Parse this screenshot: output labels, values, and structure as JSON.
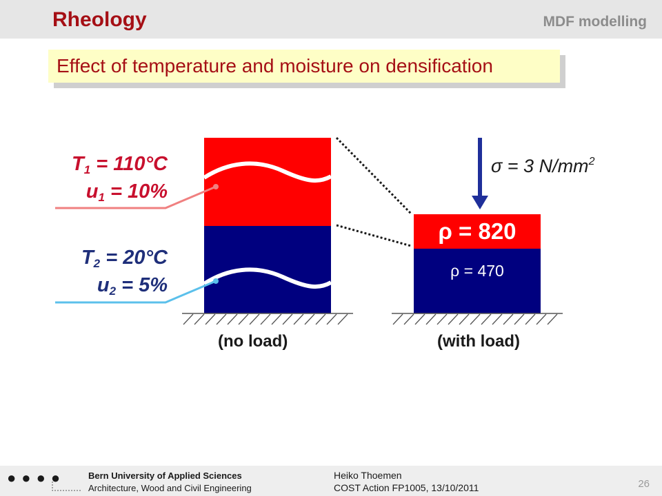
{
  "header": {
    "title": "Rheology",
    "topic": "MDF modelling"
  },
  "subtitle": "Effect of temperature and moisture on densification",
  "labels": {
    "t1_var": "T",
    "t1_sub": "1",
    "t1_val": " = 110°C",
    "u1_var": "u",
    "u1_sub": "1",
    "u1_val": " = 10%",
    "t2_var": "T",
    "t2_sub": "2",
    "t2_val": " = 20°C",
    "u2_var": "u",
    "u2_sub": "2",
    "u2_val": " = 5%"
  },
  "load": {
    "sigma_text": "σ = 3 N/mm",
    "sigma_sup": "2"
  },
  "densities": {
    "compressed": "ρ = 820",
    "base": "ρ = 470"
  },
  "captions": {
    "left": "(no load)",
    "right": "(with load)"
  },
  "colors": {
    "red": "#ff0000",
    "blue": "#00007f",
    "title": "#a50f15",
    "subtitle_bg": "#fefec6"
  },
  "footer": {
    "institution": "Bern University of Applied Sciences",
    "department": "Architecture, Wood and Civil Engineering",
    "author": "Heiko Thoemen",
    "event": "COST Action FP1005, 13/10/2011",
    "page": "26"
  }
}
